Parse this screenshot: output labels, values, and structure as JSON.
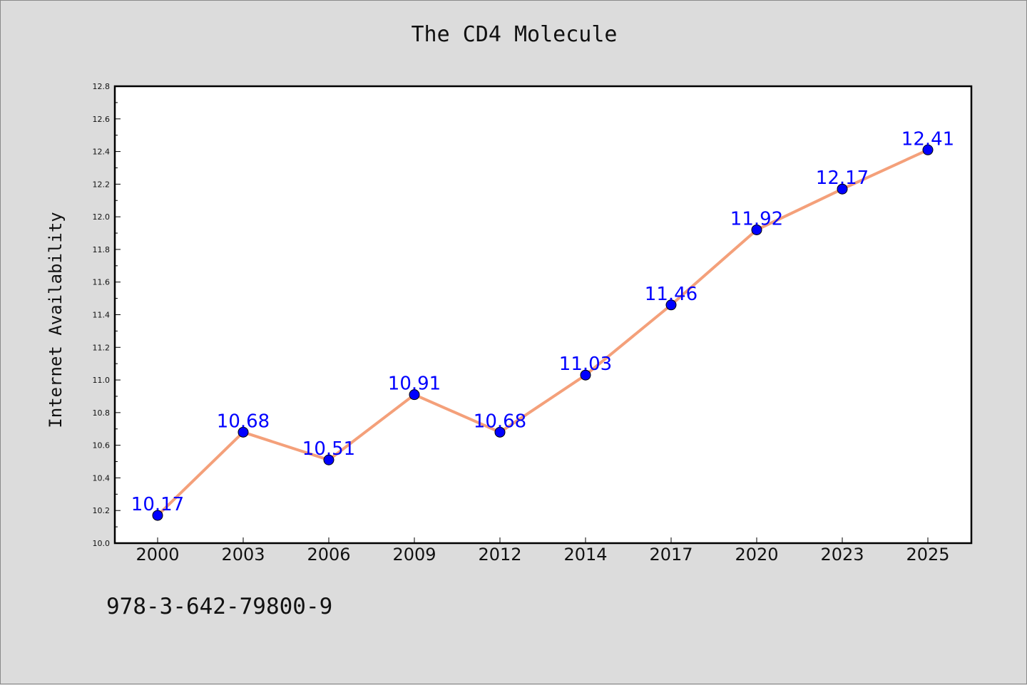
{
  "title": "The CD4 Molecule",
  "footer_code": "978-3-642-79800-9",
  "chart_data": {
    "type": "line",
    "title": "The CD4 Molecule",
    "xlabel": "",
    "ylabel": "Internet Availability",
    "categories": [
      "2000",
      "2003",
      "2006",
      "2009",
      "2012",
      "2014",
      "2017",
      "2020",
      "2023",
      "2025"
    ],
    "series": [
      {
        "values": [
          10.17,
          10.68,
          10.51,
          10.91,
          10.68,
          11.03,
          11.46,
          11.92,
          12.17,
          12.41
        ],
        "line_color": "#f4a07a",
        "marker_color": "#0000ff"
      }
    ],
    "data_labels": [
      "10.17",
      "10.68",
      "10.51",
      "10.91",
      "10.68",
      "11.03",
      "11.46",
      "11.92",
      "12.17",
      "12.41"
    ],
    "ylim": [
      10.0,
      12.8
    ],
    "y_major_ticks": [
      "10.0",
      "10.2",
      "10.4",
      "10.6",
      "10.8",
      "11.0",
      "11.2",
      "11.4",
      "11.6",
      "11.8",
      "12.0",
      "12.2",
      "12.4",
      "12.6",
      "12.8"
    ],
    "grid": false,
    "legend": "none"
  }
}
